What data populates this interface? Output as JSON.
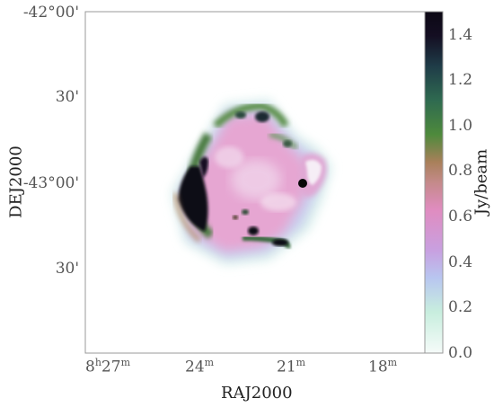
{
  "title": "",
  "axes": {
    "xlabel": "RAJ2000",
    "ylabel": "DEJ2000",
    "x_ticks": [
      {
        "h": "8",
        "hs": "h",
        "m": "27",
        "ms": "m"
      },
      {
        "h": "",
        "hs": "",
        "m": "24",
        "ms": "m"
      },
      {
        "h": "",
        "hs": "",
        "m": "21",
        "ms": "m"
      },
      {
        "h": "",
        "hs": "",
        "m": "18",
        "ms": "m"
      }
    ],
    "y_ticks": [
      "-42°00'",
      "30'",
      "-43°00'",
      "30'"
    ]
  },
  "colorbar": {
    "label": "Jy/beam",
    "ticks": [
      "1.4",
      "1.2",
      "1.0",
      "0.8",
      "0.6",
      "0.4",
      "0.2",
      "0.0"
    ],
    "range": [
      0.0,
      1.5
    ],
    "colormap": [
      "#f5fbf9",
      "#b8c6f0",
      "#c8a0e0",
      "#e08cc0",
      "#a8805a",
      "#4e8a3c",
      "#1f4a48",
      "#0c0814"
    ]
  }
}
